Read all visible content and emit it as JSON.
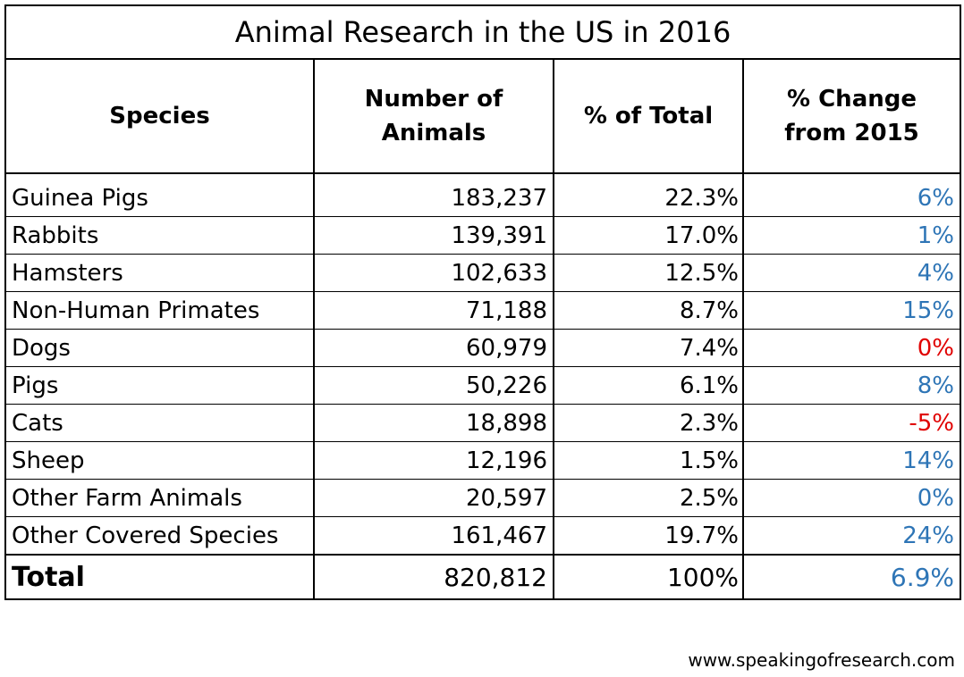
{
  "chart_data": {
    "type": "table",
    "title": "Animal Research in the US in 2016",
    "columns": [
      "Species",
      "Number of Animals",
      "% of Total",
      "% Change from 2015"
    ],
    "rows": [
      {
        "species": "Guinea Pigs",
        "number": "183,237",
        "pct_total": "22.3%",
        "pct_change": "6%",
        "change_color": "#2e75b6"
      },
      {
        "species": "Rabbits",
        "number": "139,391",
        "pct_total": "17.0%",
        "pct_change": "1%",
        "change_color": "#2e75b6"
      },
      {
        "species": "Hamsters",
        "number": "102,633",
        "pct_total": "12.5%",
        "pct_change": "4%",
        "change_color": "#2e75b6"
      },
      {
        "species": "Non-Human Primates",
        "number": "71,188",
        "pct_total": "8.7%",
        "pct_change": "15%",
        "change_color": "#2e75b6"
      },
      {
        "species": "Dogs",
        "number": "60,979",
        "pct_total": "7.4%",
        "pct_change": "0%",
        "change_color": "#e00000"
      },
      {
        "species": "Pigs",
        "number": "50,226",
        "pct_total": "6.1%",
        "pct_change": "8%",
        "change_color": "#2e75b6"
      },
      {
        "species": "Cats",
        "number": "18,898",
        "pct_total": "2.3%",
        "pct_change": "-5%",
        "change_color": "#e00000"
      },
      {
        "species": "Sheep",
        "number": "12,196",
        "pct_total": "1.5%",
        "pct_change": "14%",
        "change_color": "#2e75b6"
      },
      {
        "species": "Other Farm Animals",
        "number": "20,597",
        "pct_total": "2.5%",
        "pct_change": "0%",
        "change_color": "#2e75b6"
      },
      {
        "species": "Other Covered Species",
        "number": "161,467",
        "pct_total": "19.7%",
        "pct_change": "24%",
        "change_color": "#2e75b6"
      }
    ],
    "total": {
      "species": "Total",
      "number": "820,812",
      "pct_total": "100%",
      "pct_change": "6.9%",
      "change_color": "#2e75b6"
    }
  },
  "header": {
    "species": "Species",
    "number_line1": "Number of",
    "number_line2": "Animals",
    "pct_total": "% of Total",
    "change_line1": "% Change",
    "change_line2": "from 2015"
  },
  "footer": {
    "source": "www.speakingofresearch.com"
  }
}
